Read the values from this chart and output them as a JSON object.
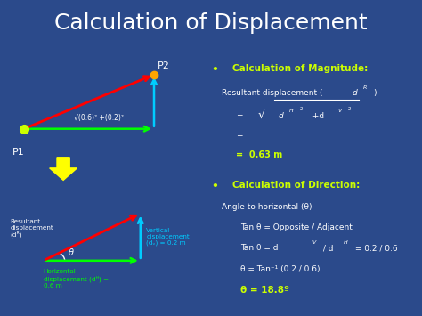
{
  "title": "Calculation of Displacement",
  "bg_color": "#2B4A8B",
  "title_color": "#FFFFFF",
  "title_fontsize": 18,
  "yellow_color": "#CCFF00",
  "green_color": "#00FF00",
  "cyan_color": "#00CCFF",
  "red_color": "#FF0000",
  "white_color": "#FFFFFF",
  "p1_label": "P1",
  "p2_label": "P2",
  "sqrt_label": "√(0.6)² +(0.2)²",
  "horiz_label": "Horizontal\ndisplacement (dᴴ) =\n0.6 m",
  "vert_label": "Vertical\ndisplacement\n(dᵥ) = 0.2 m",
  "result_label": "Resultant\ndisplacement\n(dᴿ)",
  "theta_label": "θ",
  "mag_title": "Calculation of Magnitude:",
  "dir_title": "Calculation of Direction:"
}
